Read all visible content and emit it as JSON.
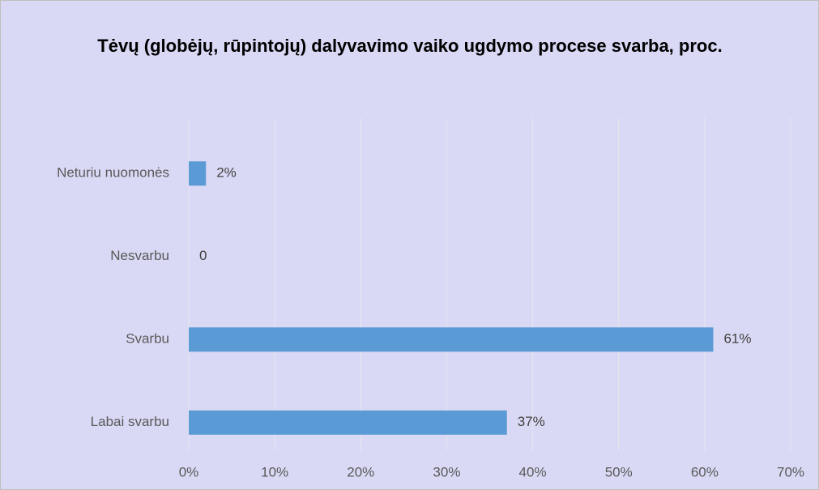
{
  "chart_data": {
    "type": "hbar",
    "title": "Tėvų (globėjų, rūpintojų) dalyvavimo vaiko ugdymo procese svarba, proc.",
    "categories": [
      "Neturiu nuomonės",
      "Nesvarbu",
      "Svarbu",
      "Labai svarbu"
    ],
    "values": [
      2,
      0,
      61,
      37
    ],
    "value_labels": [
      "2%",
      "0",
      "61%",
      "37%"
    ],
    "color": "#5b9bd5",
    "xlim": [
      0,
      70
    ],
    "xticks": [
      {
        "value": 0,
        "label": "0%"
      },
      {
        "value": 10,
        "label": "10%"
      },
      {
        "value": 20,
        "label": "20%"
      },
      {
        "value": 30,
        "label": "30%"
      },
      {
        "value": 40,
        "label": "40%"
      },
      {
        "value": 50,
        "label": "50%"
      },
      {
        "value": 60,
        "label": "60%"
      },
      {
        "value": 70,
        "label": "70%"
      }
    ],
    "grid": true
  }
}
